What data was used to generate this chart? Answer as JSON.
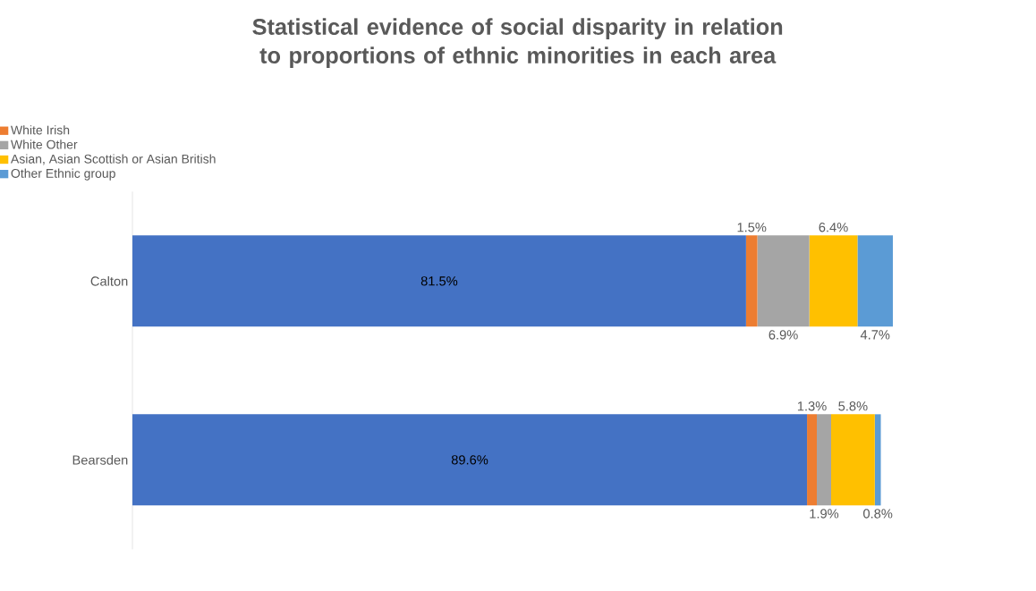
{
  "chart_data": {
    "type": "bar",
    "orientation": "horizontal",
    "stacked": true,
    "title": "Statistical evidence of social disparity in relation to proportions of ethnic minorities in each area",
    "categories": [
      "Calton",
      "Bearsden"
    ],
    "series": [
      {
        "color": "#4472c4",
        "values": [
          81.5,
          89.6
        ],
        "value_labels": [
          "81.5%",
          "89.6%"
        ]
      },
      {
        "name": "White Irish",
        "color": "#ed7d31",
        "values": [
          1.5,
          1.3
        ],
        "value_labels": [
          "1.5%",
          "1.3%"
        ]
      },
      {
        "name": "White Other",
        "color": "#a5a5a5",
        "values": [
          6.9,
          1.9
        ],
        "value_labels": [
          "6.9%",
          "1.9%"
        ]
      },
      {
        "name": "Asian, Asian Scottish or Asian British",
        "color": "#ffc000",
        "values": [
          6.4,
          5.8
        ],
        "value_labels": [
          "6.4%",
          "5.8%"
        ]
      },
      {
        "name": "Other Ethnic group",
        "color": "#5b9bd5",
        "values": [
          4.7,
          0.8
        ],
        "value_labels": [
          "4.7%",
          "0.8%"
        ]
      }
    ],
    "tick_labels": "y",
    "legend": "top left"
  }
}
